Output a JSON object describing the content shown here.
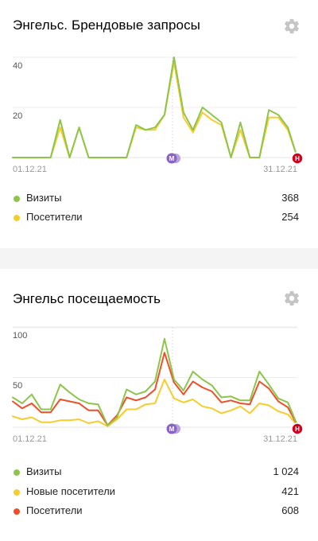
{
  "widgets": [
    {
      "title": "Энгельс. Брендовые запросы",
      "settings_icon": "gear-icon",
      "y_ticks": [
        "40",
        "20"
      ],
      "date_start": "01.12.21",
      "date_end": "31.12.21",
      "markers": [
        {
          "label": "М",
          "color": "#8a63c9",
          "kind": "two-bubble"
        },
        {
          "label": "Н",
          "color": "#d3001b",
          "kind": "circle"
        }
      ],
      "legend": [
        {
          "label": "Визиты",
          "value": "368",
          "color": "#8dc54b"
        },
        {
          "label": "Посетители",
          "value": "254",
          "color": "#f6cc2f"
        }
      ]
    },
    {
      "title": "Энгельс посещаемость",
      "settings_icon": "gear-icon",
      "y_ticks": [
        "100",
        "50"
      ],
      "date_start": "01.12.21",
      "date_end": "31.12.21",
      "markers": [
        {
          "label": "М",
          "color": "#8a63c9",
          "kind": "two-bubble"
        },
        {
          "label": "Н",
          "color": "#d3001b",
          "kind": "circle"
        }
      ],
      "legend": [
        {
          "label": "Визиты",
          "value": "1 024",
          "color": "#8dc54b"
        },
        {
          "label": "Новые посетители",
          "value": "421",
          "color": "#f6cc2f"
        },
        {
          "label": "Посетители",
          "value": "608",
          "color": "#ee4f2a"
        }
      ]
    }
  ],
  "chart_data": [
    {
      "type": "line",
      "title": "Энгельс. Брендовые запросы",
      "x_start": "01.12.21",
      "x_end": "31.12.21",
      "x": [
        "01.12",
        "02.12",
        "03.12",
        "04.12",
        "05.12",
        "06.12",
        "07.12",
        "08.12",
        "09.12",
        "10.12",
        "11.12",
        "12.12",
        "13.12",
        "14.12",
        "15.12",
        "16.12",
        "17.12",
        "18.12",
        "19.12",
        "20.12",
        "21.12",
        "22.12",
        "23.12",
        "24.12",
        "25.12",
        "26.12",
        "27.12",
        "28.12",
        "29.12",
        "30.12",
        "31.12"
      ],
      "ylim": [
        0,
        40
      ],
      "grid": true,
      "series": [
        {
          "name": "Визиты",
          "color": "#8dc54b",
          "values": [
            0,
            0,
            0,
            0,
            0,
            15,
            0,
            12,
            0,
            0,
            0,
            0,
            0,
            13,
            11,
            12,
            17,
            40,
            18,
            11,
            20,
            17,
            14,
            0,
            14,
            0,
            0,
            19,
            17,
            12,
            0
          ]
        },
        {
          "name": "Посетители",
          "color": "#f6cc2f",
          "values": [
            0,
            0,
            0,
            0,
            0,
            12,
            0,
            12,
            0,
            0,
            0,
            0,
            0,
            12,
            11,
            11,
            17,
            38,
            16,
            10,
            18,
            15,
            13,
            0,
            11,
            0,
            0,
            16,
            16,
            11,
            0
          ]
        }
      ]
    },
    {
      "type": "line",
      "title": "Энгельс посещаемость",
      "x_start": "01.12.21",
      "x_end": "31.12.21",
      "x": [
        "01.12",
        "02.12",
        "03.12",
        "04.12",
        "05.12",
        "06.12",
        "07.12",
        "08.12",
        "09.12",
        "10.12",
        "11.12",
        "12.12",
        "13.12",
        "14.12",
        "15.12",
        "16.12",
        "17.12",
        "18.12",
        "19.12",
        "20.12",
        "21.12",
        "22.12",
        "23.12",
        "24.12",
        "25.12",
        "26.12",
        "27.12",
        "28.12",
        "29.12",
        "30.12",
        "31.12"
      ],
      "ylim": [
        0,
        100
      ],
      "grid": true,
      "series": [
        {
          "name": "Визиты",
          "color": "#8dc54b",
          "values": [
            30,
            24,
            33,
            18,
            18,
            43,
            35,
            28,
            24,
            23,
            2,
            10,
            38,
            33,
            36,
            46,
            89,
            48,
            37,
            56,
            48,
            42,
            30,
            31,
            27,
            27,
            56,
            43,
            29,
            25,
            2
          ]
        },
        {
          "name": "Новые посетители",
          "color": "#f6cc2f",
          "values": [
            11,
            8,
            10,
            5,
            5,
            7,
            7,
            8,
            4,
            6,
            1,
            8,
            18,
            18,
            23,
            24,
            48,
            29,
            25,
            28,
            21,
            19,
            14,
            17,
            21,
            14,
            24,
            22,
            16,
            13,
            2
          ]
        },
        {
          "name": "Посетители",
          "color": "#ee4f2a",
          "values": [
            26,
            19,
            24,
            15,
            15,
            28,
            26,
            24,
            17,
            17,
            2,
            12,
            30,
            27,
            30,
            38,
            75,
            45,
            33,
            46,
            40,
            36,
            25,
            27,
            24,
            23,
            46,
            39,
            26,
            20,
            2
          ]
        }
      ]
    }
  ]
}
